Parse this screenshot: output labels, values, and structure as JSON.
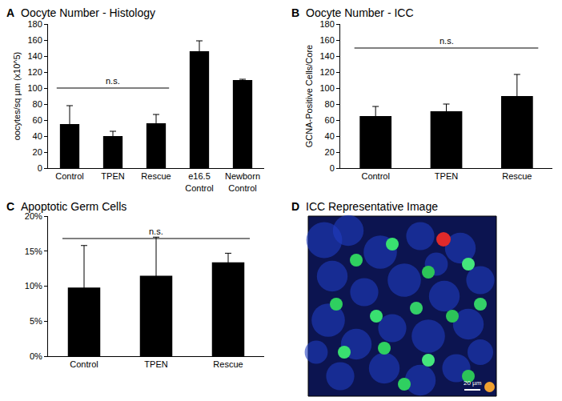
{
  "chart_data": [
    {
      "type": "bar",
      "panel": "A",
      "title": "Oocyte Number - Histology",
      "categories": [
        "Control",
        "TPEN",
        "Rescue",
        "e16.5 Control",
        "Newborn Control"
      ],
      "values": [
        55,
        40,
        56,
        146,
        110
      ],
      "errors": [
        23,
        6,
        11,
        13,
        1
      ],
      "color": "#000000",
      "y_label": "oocytes/sq µm (x10^5)",
      "ylim": [
        0,
        180
      ],
      "yticks": [
        0,
        20,
        40,
        60,
        80,
        100,
        120,
        140,
        160,
        180
      ],
      "grid": false,
      "annotations": [
        {
          "text": "n.s.",
          "from": "Control",
          "to": "Rescue",
          "y": 100
        }
      ]
    },
    {
      "type": "bar",
      "panel": "B",
      "title": "Oocyte Number - ICC",
      "categories": [
        "Control",
        "TPEN",
        "Rescue"
      ],
      "values": [
        65,
        71,
        90
      ],
      "errors": [
        12,
        9,
        27
      ],
      "color": "#000000",
      "y_label": "GCNA-Positive Cells/Core",
      "ylim": [
        0,
        180
      ],
      "yticks": [
        0,
        20,
        40,
        60,
        80,
        100,
        120,
        140,
        160,
        180
      ],
      "grid": false,
      "annotations": [
        {
          "text": "n.s.",
          "from": "Control",
          "to": "Rescue",
          "y": 150
        }
      ]
    },
    {
      "type": "bar",
      "panel": "C",
      "title": "Apoptotic Germ Cells",
      "categories": [
        "Control",
        "TPEN",
        "Rescue"
      ],
      "values": [
        9.8,
        11.5,
        13.4
      ],
      "errors": [
        6,
        5.5,
        1.3
      ],
      "color": "#000000",
      "ylim": [
        0,
        20
      ],
      "yticks": [
        {
          "value": 0,
          "label": "0%"
        },
        {
          "value": 5,
          "label": "5%"
        },
        {
          "value": 10,
          "label": "10%"
        },
        {
          "value": 15,
          "label": "15%"
        },
        {
          "value": 20,
          "label": "20%"
        }
      ],
      "grid": false,
      "annotations": [
        {
          "text": "n.s.",
          "from": "Control",
          "to": "Rescue",
          "y": 16.8
        }
      ]
    }
  ],
  "image": {
    "panel": "D",
    "title": "ICC Representative Image",
    "scale_bar": "20 µm"
  }
}
